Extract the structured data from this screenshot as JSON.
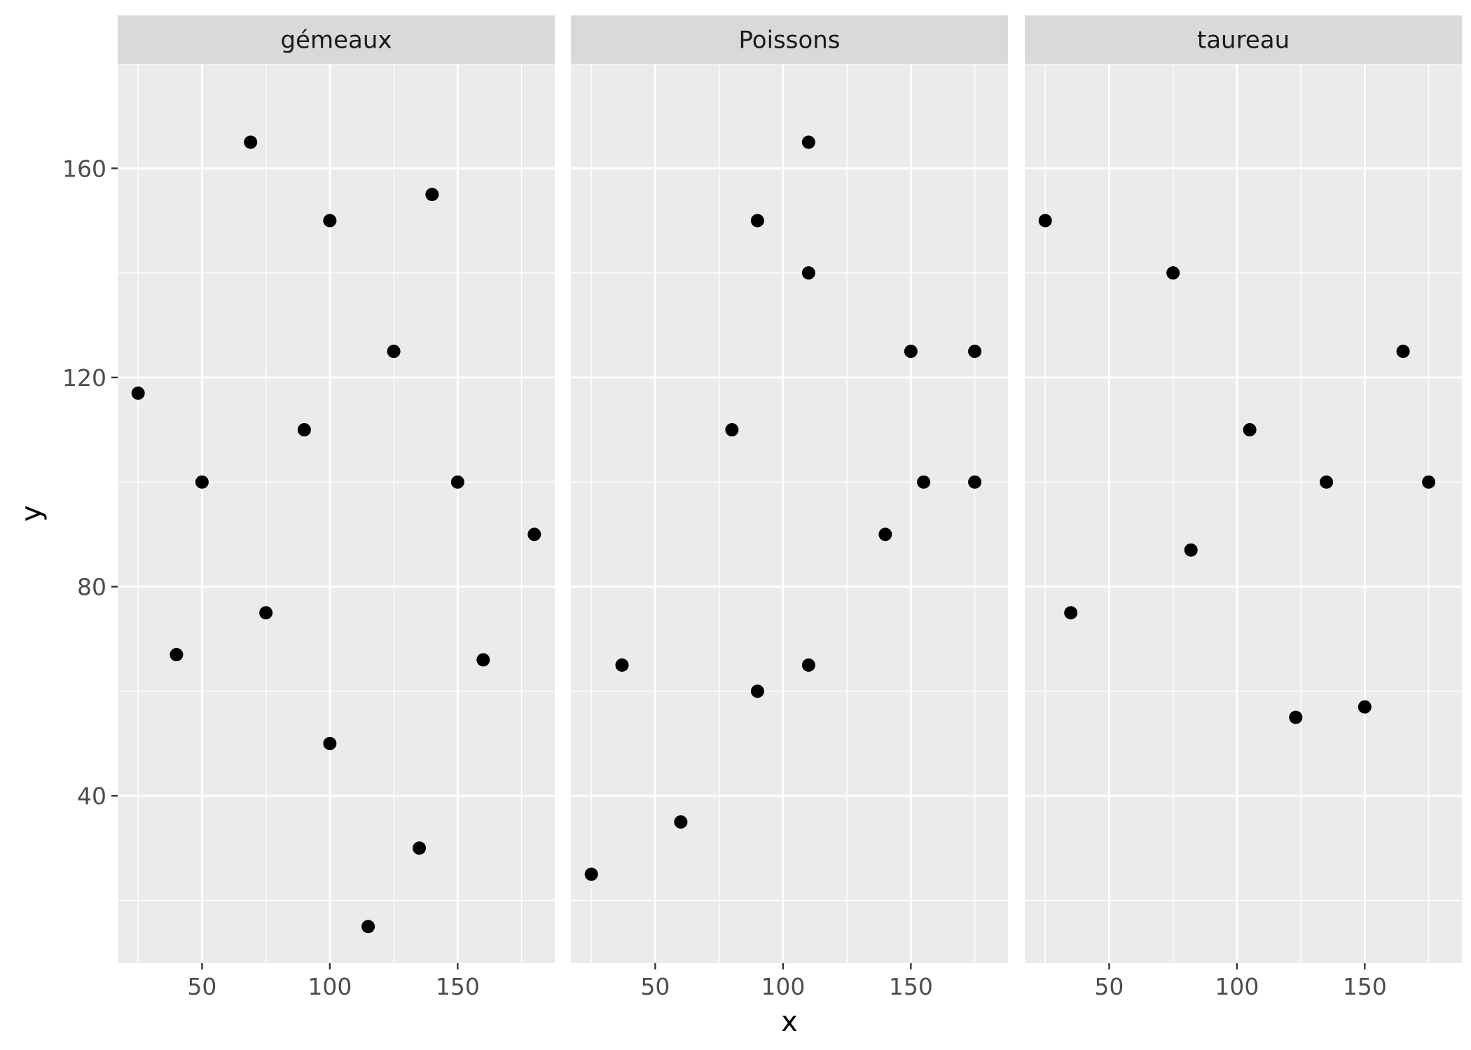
{
  "chart_data": {
    "type": "scatter",
    "xlabel": "x",
    "ylabel": "y",
    "xlim": [
      17,
      188
    ],
    "ylim": [
      8,
      180
    ],
    "x_ticks": [
      50,
      100,
      150
    ],
    "y_ticks": [
      40,
      80,
      120,
      160
    ],
    "grid": true,
    "colors": {
      "panel_bg": "#ebebeb",
      "strip_bg": "#d9d9d9",
      "grid": "#ffffff",
      "point": "#000000"
    },
    "panels": [
      {
        "name": "gémeaux",
        "points": [
          {
            "x": 25,
            "y": 117
          },
          {
            "x": 40,
            "y": 67
          },
          {
            "x": 50,
            "y": 100
          },
          {
            "x": 69,
            "y": 165
          },
          {
            "x": 75,
            "y": 75
          },
          {
            "x": 90,
            "y": 110
          },
          {
            "x": 100,
            "y": 150
          },
          {
            "x": 100,
            "y": 50
          },
          {
            "x": 115,
            "y": 15
          },
          {
            "x": 125,
            "y": 125
          },
          {
            "x": 135,
            "y": 30
          },
          {
            "x": 140,
            "y": 155
          },
          {
            "x": 150,
            "y": 100
          },
          {
            "x": 160,
            "y": 66
          },
          {
            "x": 180,
            "y": 90
          }
        ]
      },
      {
        "name": "Poissons",
        "points": [
          {
            "x": 25,
            "y": 25
          },
          {
            "x": 37,
            "y": 65
          },
          {
            "x": 60,
            "y": 35
          },
          {
            "x": 80,
            "y": 110
          },
          {
            "x": 90,
            "y": 150
          },
          {
            "x": 90,
            "y": 60
          },
          {
            "x": 110,
            "y": 165
          },
          {
            "x": 110,
            "y": 140
          },
          {
            "x": 110,
            "y": 65
          },
          {
            "x": 140,
            "y": 90
          },
          {
            "x": 150,
            "y": 125
          },
          {
            "x": 155,
            "y": 100
          },
          {
            "x": 175,
            "y": 125
          },
          {
            "x": 175,
            "y": 100
          }
        ]
      },
      {
        "name": "taureau",
        "points": [
          {
            "x": 25,
            "y": 150
          },
          {
            "x": 35,
            "y": 75
          },
          {
            "x": 75,
            "y": 140
          },
          {
            "x": 82,
            "y": 87
          },
          {
            "x": 105,
            "y": 110
          },
          {
            "x": 123,
            "y": 55
          },
          {
            "x": 135,
            "y": 100
          },
          {
            "x": 150,
            "y": 57
          },
          {
            "x": 165,
            "y": 125
          },
          {
            "x": 175,
            "y": 100
          }
        ]
      }
    ]
  }
}
